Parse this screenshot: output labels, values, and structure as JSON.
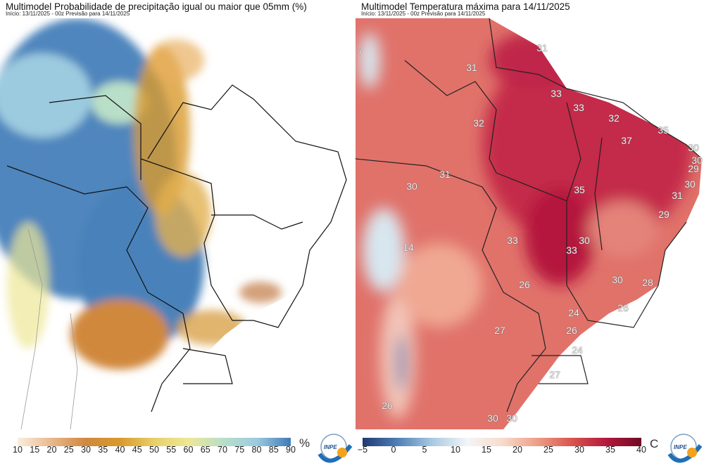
{
  "left_panel": {
    "title": "Multimodel Probabilidade de precipitação igual ou maior que 05mm (%)",
    "subtitle": "Início: 13/11/2025 - 00z  Previsão para 14/11/2025",
    "colorbar": {
      "ticks": [
        "10",
        "15",
        "20",
        "25",
        "30",
        "35",
        "40",
        "45",
        "50",
        "55",
        "60",
        "65",
        "70",
        "75",
        "80",
        "85",
        "90"
      ],
      "unit": "%",
      "colors": [
        "#fbeee0",
        "#e8b88a",
        "#d0883e",
        "#d99a2c",
        "#e8cf6a",
        "#eee795",
        "#b9dfc8",
        "#9ccbe0",
        "#3f7bb5"
      ]
    },
    "logo": "INPE"
  },
  "right_panel": {
    "title": "Multimodel Temperatura máxima para 14/11/2025",
    "subtitle": "Início: 13/11/2025 - 00z  Previsão para 14/11/2025",
    "colorbar": {
      "ticks": [
        "−5",
        "0",
        "5",
        "10",
        "15",
        "20",
        "25",
        "30",
        "35",
        "40"
      ],
      "unit": "C",
      "colors": [
        "#1f3a73",
        "#4f7fb5",
        "#a9c9e2",
        "#f3f5f7",
        "#f7dccd",
        "#ee9f88",
        "#d9544f",
        "#b4183c",
        "#6e0b25"
      ]
    },
    "labels": [
      "31",
      "31",
      "33",
      "33",
      "32",
      "32",
      "35",
      "37",
      "30",
      "30",
      "29",
      "30",
      "31",
      "35",
      "29",
      "31",
      "30",
      "14",
      "33",
      "30",
      "33",
      "26",
      "30",
      "28",
      "24",
      "26",
      "27",
      "26",
      "24",
      "27",
      "26",
      "30",
      "30",
      "7"
    ],
    "logo": "INPE"
  }
}
